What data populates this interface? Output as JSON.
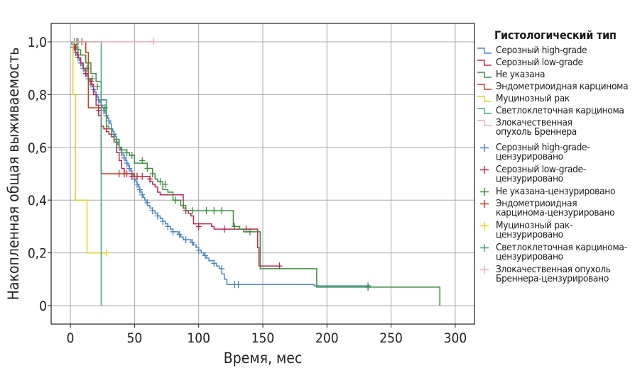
{
  "chart_data": {
    "type": "line",
    "xlabel": "Время, мес",
    "ylabel": "Накопленная общая выживаемость",
    "xlim": [
      -15,
      315
    ],
    "ylim": [
      -0.07,
      1.07
    ],
    "x_ticks": [
      0,
      50,
      100,
      150,
      200,
      250,
      300
    ],
    "y_ticks": [
      0,
      0.2,
      0.4,
      0.6,
      0.8,
      1.0
    ],
    "x_tick_labels": [
      "0",
      "50",
      "100",
      "150",
      "200",
      "250",
      "300"
    ],
    "y_tick_labels": [
      "0",
      "0,2",
      "0,4",
      "0,6",
      "0,8",
      "1,0"
    ],
    "grid": true,
    "legend_title": "Гистологический тип",
    "series": [
      {
        "name": "Серозный high-grade",
        "color": "#4a86c8",
        "kind": "step",
        "x": [
          0,
          1,
          2,
          3,
          4,
          5,
          6,
          7,
          8,
          9,
          10,
          11,
          12,
          13,
          14,
          15,
          16,
          17,
          18,
          19,
          20,
          21,
          22,
          23,
          24,
          25,
          26,
          27,
          28,
          29,
          30,
          31,
          32,
          33,
          34,
          35,
          36,
          37,
          38,
          39,
          40,
          41,
          42,
          43,
          44,
          45,
          46,
          47,
          48,
          49,
          50,
          51,
          52,
          53,
          54,
          55,
          56,
          57,
          58,
          59,
          60,
          62,
          64,
          66,
          68,
          70,
          72,
          74,
          76,
          78,
          80,
          82,
          84,
          86,
          88,
          90,
          92,
          94,
          96,
          98,
          100,
          102,
          104,
          106,
          108,
          110,
          112,
          114,
          116,
          118,
          120,
          122,
          124,
          190,
          233
        ],
        "y": [
          1.0,
          0.99,
          0.98,
          0.97,
          0.96,
          0.95,
          0.94,
          0.93,
          0.92,
          0.91,
          0.9,
          0.89,
          0.88,
          0.87,
          0.86,
          0.85,
          0.84,
          0.83,
          0.82,
          0.81,
          0.8,
          0.79,
          0.78,
          0.77,
          0.76,
          0.75,
          0.74,
          0.73,
          0.72,
          0.71,
          0.7,
          0.69,
          0.67,
          0.66,
          0.65,
          0.64,
          0.62,
          0.61,
          0.6,
          0.59,
          0.58,
          0.57,
          0.56,
          0.55,
          0.54,
          0.53,
          0.52,
          0.51,
          0.5,
          0.49,
          0.48,
          0.47,
          0.46,
          0.45,
          0.44,
          0.43,
          0.42,
          0.41,
          0.4,
          0.39,
          0.38,
          0.37,
          0.36,
          0.35,
          0.34,
          0.33,
          0.32,
          0.31,
          0.3,
          0.29,
          0.28,
          0.28,
          0.27,
          0.26,
          0.25,
          0.25,
          0.25,
          0.24,
          0.23,
          0.22,
          0.21,
          0.2,
          0.19,
          0.18,
          0.17,
          0.17,
          0.16,
          0.15,
          0.14,
          0.12,
          0.1,
          0.08,
          0.08,
          0.075,
          0.075
        ],
        "censored_x": [
          2,
          4,
          6,
          8,
          10,
          12,
          14,
          16,
          18,
          20,
          22,
          24,
          26,
          28,
          30,
          34,
          36,
          38,
          40,
          42,
          44,
          46,
          48,
          50,
          52,
          54,
          56,
          60,
          64,
          68,
          72,
          76,
          80,
          85,
          90,
          95,
          100,
          105,
          112,
          118,
          128,
          131,
          232
        ],
        "censored_y": [
          0.98,
          0.96,
          0.94,
          0.92,
          0.9,
          0.88,
          0.86,
          0.84,
          0.82,
          0.8,
          0.78,
          0.76,
          0.74,
          0.72,
          0.7,
          0.65,
          0.62,
          0.6,
          0.58,
          0.56,
          0.54,
          0.52,
          0.5,
          0.48,
          0.46,
          0.44,
          0.42,
          0.39,
          0.36,
          0.34,
          0.32,
          0.3,
          0.28,
          0.27,
          0.25,
          0.24,
          0.21,
          0.19,
          0.16,
          0.14,
          0.08,
          0.08,
          0.075
        ]
      },
      {
        "name": "Серозный low-grade",
        "color": "#c0254f",
        "kind": "step",
        "x": [
          0,
          2,
          4,
          6,
          8,
          10,
          12,
          14,
          16,
          18,
          20,
          22,
          24,
          26,
          28,
          30,
          32,
          34,
          36,
          38,
          40,
          42,
          44,
          46,
          48,
          62,
          64,
          66,
          68,
          70,
          88,
          90,
          92,
          94,
          96,
          108,
          110,
          112,
          114,
          116,
          145,
          146,
          147,
          162
        ],
        "y": [
          1.0,
          0.99,
          0.96,
          0.94,
          0.92,
          0.9,
          0.88,
          0.86,
          0.84,
          0.8,
          0.76,
          0.72,
          0.68,
          0.67,
          0.66,
          0.65,
          0.64,
          0.62,
          0.58,
          0.55,
          0.52,
          0.5,
          0.5,
          0.5,
          0.49,
          0.47,
          0.46,
          0.45,
          0.43,
          0.42,
          0.37,
          0.36,
          0.35,
          0.34,
          0.31,
          0.31,
          0.3,
          0.29,
          0.29,
          0.29,
          0.29,
          0.22,
          0.15,
          0.15
        ],
        "censored_x": [
          3,
          6,
          12,
          16,
          22,
          28,
          42,
          48,
          52,
          56,
          62,
          90,
          100,
          120,
          137,
          163
        ],
        "censored_y": [
          0.98,
          0.95,
          0.88,
          0.85,
          0.74,
          0.67,
          0.5,
          0.49,
          0.49,
          0.49,
          0.48,
          0.36,
          0.3,
          0.29,
          0.29,
          0.15
        ]
      },
      {
        "name": "Не указана",
        "color": "#3a8f3a",
        "kind": "step",
        "x": [
          0,
          3,
          5,
          8,
          12,
          16,
          20,
          24,
          28,
          30,
          32,
          34,
          38,
          40,
          44,
          46,
          50,
          60,
          64,
          66,
          68,
          72,
          76,
          80,
          86,
          90,
          127,
          132,
          135,
          148,
          192,
          288
        ],
        "y": [
          1.0,
          0.99,
          0.97,
          0.95,
          0.92,
          0.88,
          0.85,
          0.78,
          0.68,
          0.67,
          0.65,
          0.63,
          0.6,
          0.59,
          0.58,
          0.57,
          0.54,
          0.52,
          0.5,
          0.48,
          0.47,
          0.44,
          0.43,
          0.4,
          0.38,
          0.36,
          0.3,
          0.29,
          0.28,
          0.14,
          0.07,
          0.0
        ],
        "censored_x": [
          6,
          13,
          17,
          21,
          27,
          36,
          40,
          44,
          48,
          56,
          60,
          64,
          70,
          74,
          82,
          88,
          95,
          106,
          112,
          118,
          128,
          140,
          232
        ],
        "censored_y": [
          0.97,
          0.9,
          0.86,
          0.83,
          0.75,
          0.62,
          0.59,
          0.58,
          0.57,
          0.55,
          0.52,
          0.5,
          0.47,
          0.46,
          0.4,
          0.38,
          0.36,
          0.36,
          0.36,
          0.36,
          0.3,
          0.28,
          0.07
        ]
      },
      {
        "name": "Эндометриоидная карцинома",
        "color": "#d13a1e",
        "kind": "step",
        "x": [
          0,
          12,
          14,
          22,
          24,
          40,
          50
        ],
        "y": [
          1.0,
          0.96,
          0.75,
          0.75,
          0.5,
          0.5,
          0.49
        ],
        "censored_x": [
          5,
          9,
          38,
          44,
          52
        ],
        "censored_y": [
          1.0,
          1.0,
          0.5,
          0.5,
          0.49
        ]
      },
      {
        "name": "Муцинозный рак",
        "color": "#e5d21f",
        "kind": "step",
        "x": [
          0,
          2,
          4,
          7,
          13,
          28
        ],
        "y": [
          1.0,
          0.8,
          0.4,
          0.4,
          0.2,
          0.2
        ],
        "censored_x": [
          28
        ],
        "censored_y": [
          0.2
        ]
      },
      {
        "name": "Светлоклеточная карцинома",
        "color": "#3aa384",
        "kind": "step",
        "x": [
          0,
          4,
          24,
          24.01
        ],
        "y": [
          1.0,
          1.0,
          1.0,
          0.0
        ],
        "censored_x": [
          3,
          6
        ],
        "censored_y": [
          1.0,
          1.0
        ]
      },
      {
        "name": "Злокачественная опухоль Бреннера",
        "color": "#f0a8b8",
        "kind": "step",
        "x": [
          0,
          65
        ],
        "y": [
          1.0,
          1.0
        ],
        "censored_x": [
          65
        ],
        "censored_y": [
          1.0
        ]
      }
    ],
    "legend": [
      {
        "label": "Серозный high-grade",
        "color": "#4a86c8",
        "sym": "step"
      },
      {
        "label": "Серозный low-grade",
        "color": "#c0254f",
        "sym": "step"
      },
      {
        "label": "Не указана",
        "color": "#3a8f3a",
        "sym": "step"
      },
      {
        "label": "Эндометриоидная карцинома",
        "color": "#d13a1e",
        "sym": "step"
      },
      {
        "label": "Муцинозный рак",
        "color": "#e5d21f",
        "sym": "step"
      },
      {
        "label": "Светлоклеточная карцинома",
        "color": "#3aa384",
        "sym": "step"
      },
      {
        "label": "Злокачественная\nопухоль Бреннера",
        "color": "#f0a8b8",
        "sym": "step"
      },
      {
        "label": "Серозный high-grade-\nцензурировано",
        "color": "#4a86c8",
        "sym": "plus"
      },
      {
        "label": "Серозный low-grade-\nцензурировано",
        "color": "#c0254f",
        "sym": "plus"
      },
      {
        "label": "Не указана-цензурировано",
        "color": "#3a8f3a",
        "sym": "plus"
      },
      {
        "label": "Эндометриоидная\nкарцинома-цензурировано",
        "color": "#d13a1e",
        "sym": "plus"
      },
      {
        "label": "Муцинозный рак-\nцензурировано",
        "color": "#e5d21f",
        "sym": "plus"
      },
      {
        "label": "Светлоклеточная карцинома-\nцензурировано",
        "color": "#3aa384",
        "sym": "plus"
      },
      {
        "label": "Злокачественная опухоль\nБреннера-цензурировано",
        "color": "#f0a8b8",
        "sym": "plus"
      }
    ]
  }
}
